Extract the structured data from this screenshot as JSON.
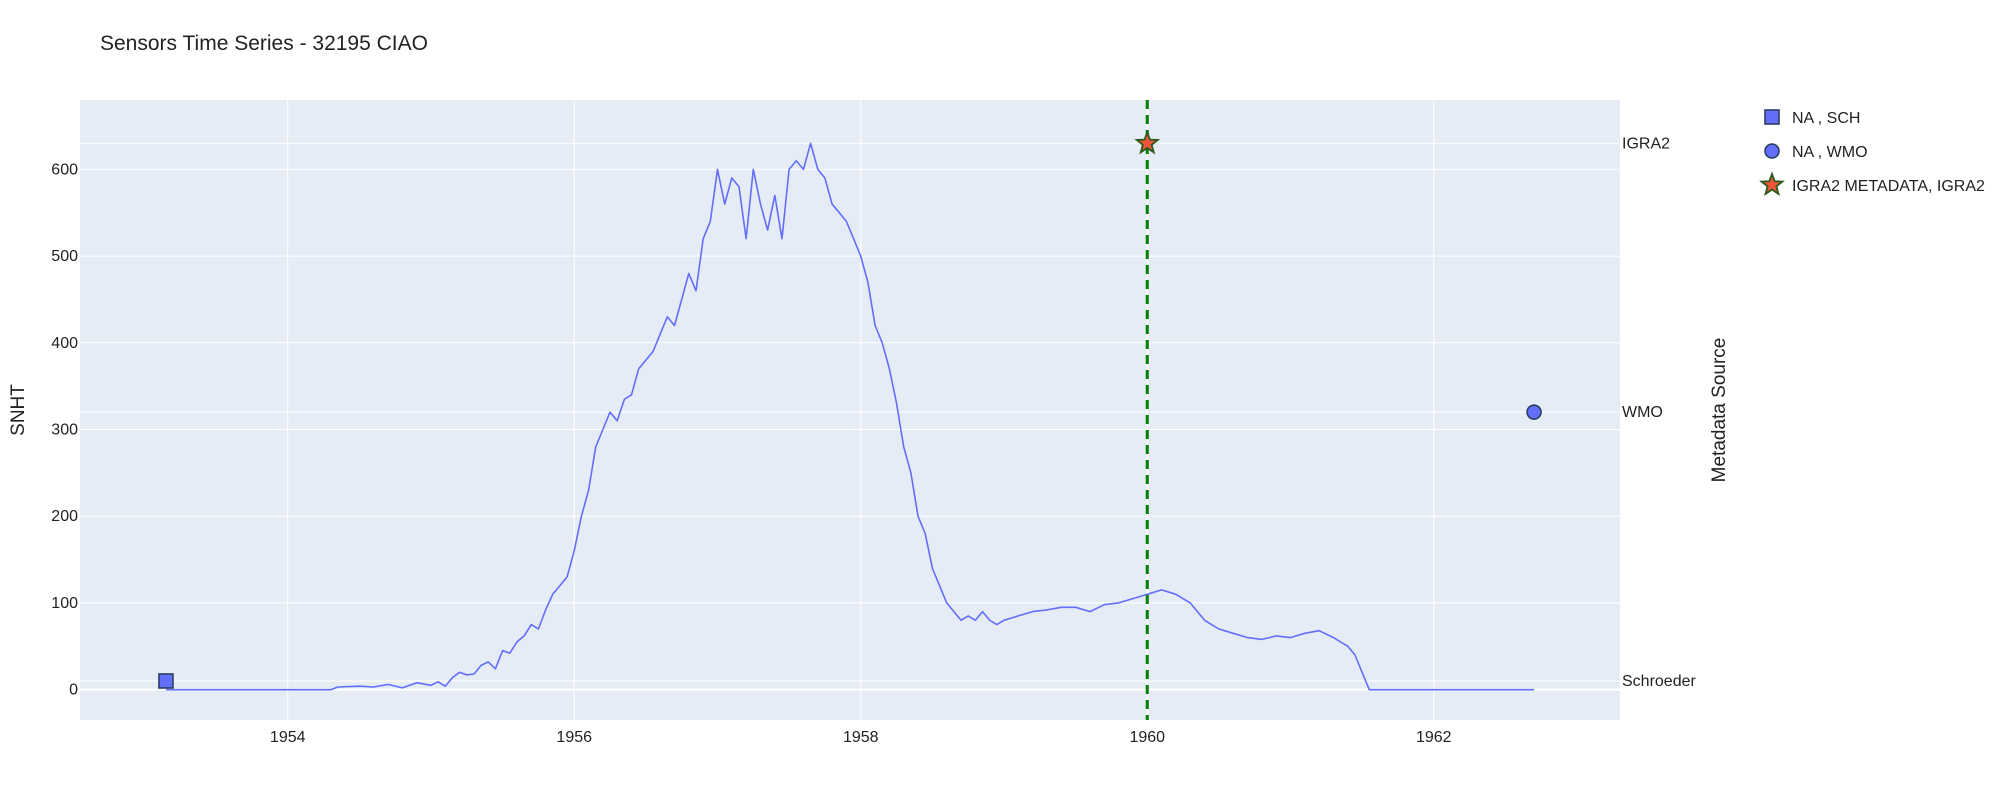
{
  "chart_data": {
    "type": "line",
    "title": "Sensors Time Series - 32195 CIAO",
    "xlabel": "",
    "ylabel": "SNHT",
    "y2label": "Metadata Source",
    "xlim": [
      1952.55,
      1963.3
    ],
    "ylim": [
      -35,
      680
    ],
    "x_ticks": [
      1954,
      1956,
      1958,
      1960,
      1962
    ],
    "y_ticks": [
      0,
      100,
      200,
      300,
      400,
      500,
      600
    ],
    "grid": true,
    "legend_position": "top-right",
    "y2_categories": [
      {
        "label": "Schroeder",
        "y": 10
      },
      {
        "label": "WMO",
        "y": 320
      },
      {
        "label": "IGRA2",
        "y": 630
      }
    ],
    "vertical_line": {
      "x": 1960.0,
      "color": "#008000",
      "style": "dashed"
    },
    "series": [
      {
        "type": "line",
        "color": "#636efa",
        "x": [
          1953.15,
          1954.3,
          1954.35,
          1954.5,
          1954.6,
          1954.7,
          1954.8,
          1954.9,
          1955.0,
          1955.05,
          1955.1,
          1955.15,
          1955.2,
          1955.25,
          1955.3,
          1955.35,
          1955.4,
          1955.45,
          1955.5,
          1955.55,
          1955.6,
          1955.65,
          1955.7,
          1955.75,
          1955.8,
          1955.85,
          1955.9,
          1955.95,
          1956.0,
          1956.05,
          1956.1,
          1956.15,
          1956.2,
          1956.25,
          1956.3,
          1956.35,
          1956.4,
          1956.45,
          1956.5,
          1956.55,
          1956.6,
          1956.65,
          1956.7,
          1956.75,
          1956.8,
          1956.85,
          1956.9,
          1956.95,
          1957.0,
          1957.05,
          1957.1,
          1957.15,
          1957.2,
          1957.25,
          1957.3,
          1957.35,
          1957.4,
          1957.45,
          1957.5,
          1957.55,
          1957.6,
          1957.65,
          1957.7,
          1957.75,
          1957.8,
          1957.85,
          1957.9,
          1957.95,
          1958.0,
          1958.05,
          1958.1,
          1958.15,
          1958.2,
          1958.25,
          1958.3,
          1958.35,
          1958.4,
          1958.45,
          1958.5,
          1958.55,
          1958.6,
          1958.65,
          1958.7,
          1958.75,
          1958.8,
          1958.85,
          1958.9,
          1958.95,
          1959.0,
          1959.1,
          1959.2,
          1959.3,
          1959.4,
          1959.5,
          1959.6,
          1959.7,
          1959.8,
          1959.9,
          1960.0,
          1960.1,
          1960.2,
          1960.3,
          1960.4,
          1960.5,
          1960.6,
          1960.7,
          1960.8,
          1960.9,
          1961.0,
          1961.1,
          1961.2,
          1961.3,
          1961.35,
          1961.4,
          1961.45,
          1961.5,
          1961.55,
          1962.7
        ],
        "y": [
          0,
          0,
          3,
          4,
          3,
          6,
          2,
          8,
          5,
          9,
          4,
          14,
          20,
          17,
          18,
          28,
          32,
          24,
          45,
          42,
          55,
          62,
          75,
          70,
          92,
          110,
          120,
          130,
          160,
          200,
          230,
          280,
          300,
          320,
          310,
          335,
          340,
          370,
          380,
          390,
          410,
          430,
          420,
          450,
          480,
          460,
          520,
          540,
          600,
          560,
          590,
          580,
          520,
          600,
          560,
          530,
          570,
          520,
          600,
          610,
          600,
          630,
          600,
          590,
          560,
          550,
          540,
          520,
          500,
          470,
          420,
          400,
          370,
          330,
          280,
          250,
          200,
          180,
          140,
          120,
          100,
          90,
          80,
          85,
          80,
          90,
          80,
          75,
          80,
          85,
          90,
          92,
          95,
          95,
          90,
          98,
          100,
          105,
          110,
          115,
          110,
          100,
          80,
          70,
          65,
          60,
          58,
          62,
          60,
          65,
          68,
          60,
          55,
          50,
          40,
          20,
          0,
          0
        ]
      }
    ],
    "markers": [
      {
        "name": "NA , SCH",
        "symbol": "square",
        "x": 1953.15,
        "y": 10,
        "color": "#636efa"
      },
      {
        "name": "NA , WMO",
        "symbol": "circle",
        "x": 1962.7,
        "y": 320,
        "color": "#636efa"
      },
      {
        "name": "IGRA2 METADATA, IGRA2",
        "symbol": "star",
        "x": 1960.0,
        "y": 630,
        "color": "#EF553B",
        "border": "#2a5a1a"
      }
    ]
  }
}
